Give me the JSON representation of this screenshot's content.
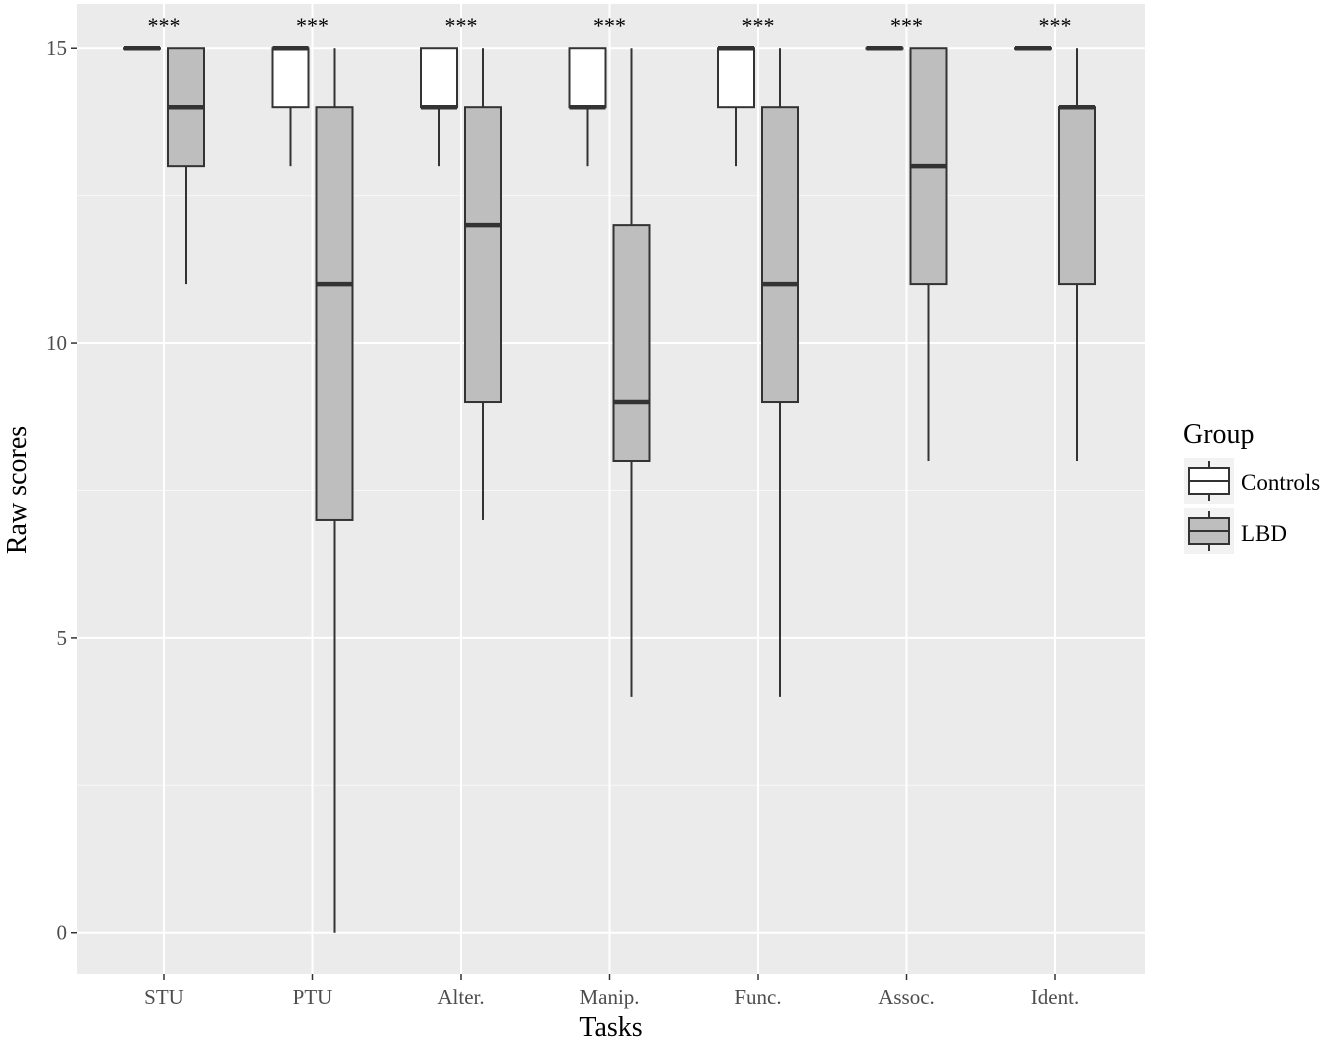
{
  "chart_data": {
    "type": "boxplot",
    "xlabel": "Tasks",
    "ylabel": "Raw scores",
    "ylim": [
      -0.7,
      15.75
    ],
    "yticks": [
      0,
      5,
      10,
      15
    ],
    "ytick_labels": [
      "0",
      "5",
      "10",
      "15"
    ],
    "grid": true,
    "categories": [
      "STU",
      "PTU",
      "Alter.",
      "Manip.",
      "Func.",
      "Assoc.",
      "Ident."
    ],
    "annotations": [
      "***",
      "***",
      "***",
      "***",
      "***",
      "***",
      "***"
    ],
    "legend": {
      "title": "Group",
      "placement": "right",
      "entries": [
        "Controls",
        "LBD"
      ]
    },
    "series": [
      {
        "name": "Controls",
        "color": "#ffffff",
        "boxes": [
          {
            "min": 15,
            "q1": 15,
            "median": 15,
            "q3": 15,
            "max": 15
          },
          {
            "min": 13,
            "q1": 14,
            "median": 15,
            "q3": 15,
            "max": 15
          },
          {
            "min": 13,
            "q1": 14,
            "median": 14,
            "q3": 15,
            "max": 15
          },
          {
            "min": 13,
            "q1": 14,
            "median": 14,
            "q3": 15,
            "max": 15
          },
          {
            "min": 13,
            "q1": 14,
            "median": 15,
            "q3": 15,
            "max": 15
          },
          {
            "min": 15,
            "q1": 15,
            "median": 15,
            "q3": 15,
            "max": 15
          },
          {
            "min": 15,
            "q1": 15,
            "median": 15,
            "q3": 15,
            "max": 15
          }
        ]
      },
      {
        "name": "LBD",
        "color": "#bebebe",
        "boxes": [
          {
            "min": 11,
            "q1": 13,
            "median": 14,
            "q3": 15,
            "max": 15
          },
          {
            "min": 0,
            "q1": 7,
            "median": 11,
            "q3": 14,
            "max": 15
          },
          {
            "min": 7,
            "q1": 9,
            "median": 12,
            "q3": 14,
            "max": 15
          },
          {
            "min": 4,
            "q1": 8,
            "median": 9,
            "q3": 12,
            "max": 15
          },
          {
            "min": 4,
            "q1": 9,
            "median": 11,
            "q3": 14,
            "max": 15
          },
          {
            "min": 8,
            "q1": 11,
            "median": 13,
            "q3": 15,
            "max": 15
          },
          {
            "min": 8,
            "q1": 11,
            "median": 14,
            "q3": 14,
            "max": 15
          }
        ]
      }
    ]
  }
}
